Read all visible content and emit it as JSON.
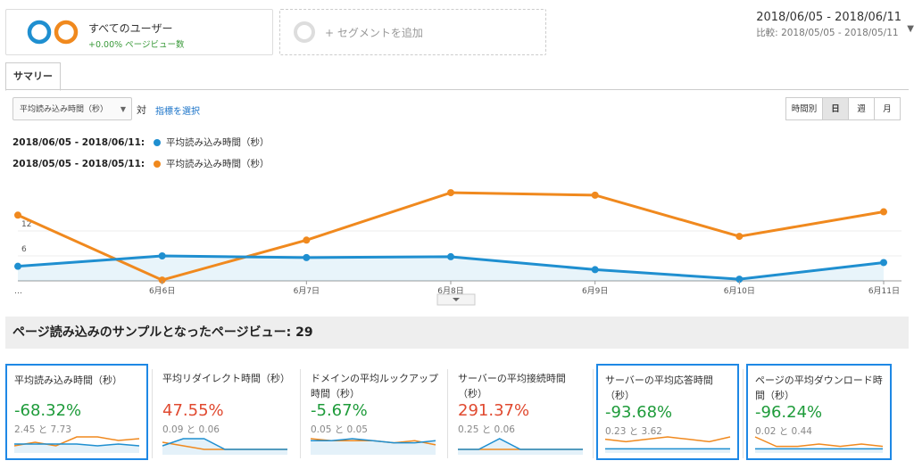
{
  "segments": {
    "all_users": {
      "title": "すべてのユーザー",
      "subtitle": "+0.00% ページビュー数"
    },
    "add_label": "+ セグメントを追加"
  },
  "date_range": {
    "main": "2018/06/05 - 2018/06/11",
    "compare": "比較: 2018/05/05 - 2018/05/11"
  },
  "tabs": [
    {
      "label": "サマリー"
    }
  ],
  "controls": {
    "metric": "平均読み込み時間（秒）",
    "vs": "対",
    "choose_metric": "指標を選択",
    "periods": [
      "時間別",
      "日",
      "週",
      "月"
    ],
    "active_period": "日"
  },
  "legend": [
    {
      "date": "2018/06/05 - 2018/06/11:",
      "label": "平均読み込み時間（秒）",
      "color": "#1f8fd0"
    },
    {
      "date": "2018/05/05 - 2018/05/11:",
      "label": "平均読み込み時間（秒）",
      "color": "#f0891e"
    }
  ],
  "chart_data": {
    "type": "line",
    "x": [
      "…",
      "6月6日",
      "6月7日",
      "6月8日",
      "6月9日",
      "6月10日",
      "6月11日"
    ],
    "series": [
      {
        "name": "2018/06/05 - 2018/06/11",
        "values": [
          3.5,
          6.0,
          5.6,
          5.8,
          2.7,
          0.4,
          4.4
        ],
        "color": "#1f8fd0"
      },
      {
        "name": "2018/05/05 - 2018/05/11",
        "values": [
          15.8,
          0.2,
          9.8,
          21.2,
          20.6,
          10.7,
          16.6
        ],
        "color": "#f0891e"
      }
    ],
    "yticks": [
      12,
      6
    ],
    "ylim": [
      0,
      24
    ],
    "grid": true
  },
  "summary": {
    "label": "ページ読み込みのサンプルとなったページビュー: 29"
  },
  "cards": [
    {
      "title": "平均読み込み時間（秒）",
      "percent": "-68.32%",
      "compare": "2.45 と 7.73",
      "status": "good",
      "selected": true,
      "spark_current": [
        4,
        4,
        4,
        4,
        3,
        4,
        3
      ],
      "spark_prev": [
        3,
        5,
        3,
        8,
        8,
        6,
        7
      ]
    },
    {
      "title": "平均リダイレクト時間（秒）",
      "percent": "47.55%",
      "compare": "0.09 と 0.06",
      "status": "bad",
      "selected": false,
      "spark_current": [
        2,
        4,
        4,
        1,
        1,
        1,
        1
      ],
      "spark_prev": [
        3,
        2,
        1,
        1,
        1,
        1,
        1
      ]
    },
    {
      "title": "ドメインの平均ルックアップ時間（秒）",
      "percent": "-5.67%",
      "compare": "0.05 と 0.05",
      "status": "good",
      "selected": false,
      "spark_current": [
        6,
        6,
        7,
        6,
        5,
        5,
        6
      ],
      "spark_prev": [
        7,
        6,
        6,
        6,
        5,
        6,
        4
      ]
    },
    {
      "title": "サーバーの平均接続時間（秒）",
      "percent": "291.37%",
      "compare": "0.25 と 0.06",
      "status": "bad",
      "selected": false,
      "spark_current": [
        1,
        1,
        4,
        1,
        1,
        1,
        1
      ],
      "spark_prev": [
        1,
        1,
        1,
        1,
        1,
        1,
        1
      ]
    },
    {
      "title": "サーバーの平均応答時間（秒）",
      "percent": "-93.68%",
      "compare": "0.23 と 3.62",
      "status": "good",
      "selected": true,
      "spark_current": [
        1,
        1,
        1,
        1,
        1,
        1,
        1
      ],
      "spark_prev": [
        5,
        4,
        5,
        6,
        5,
        4,
        6
      ]
    },
    {
      "title": "ページの平均ダウンロード時間（秒）",
      "percent": "-96.24%",
      "compare": "0.02 と 0.44",
      "status": "good",
      "selected": true,
      "spark_current": [
        1,
        1,
        1,
        1,
        1,
        1,
        1
      ],
      "spark_prev": [
        6,
        2,
        2,
        3,
        2,
        3,
        2
      ]
    }
  ]
}
